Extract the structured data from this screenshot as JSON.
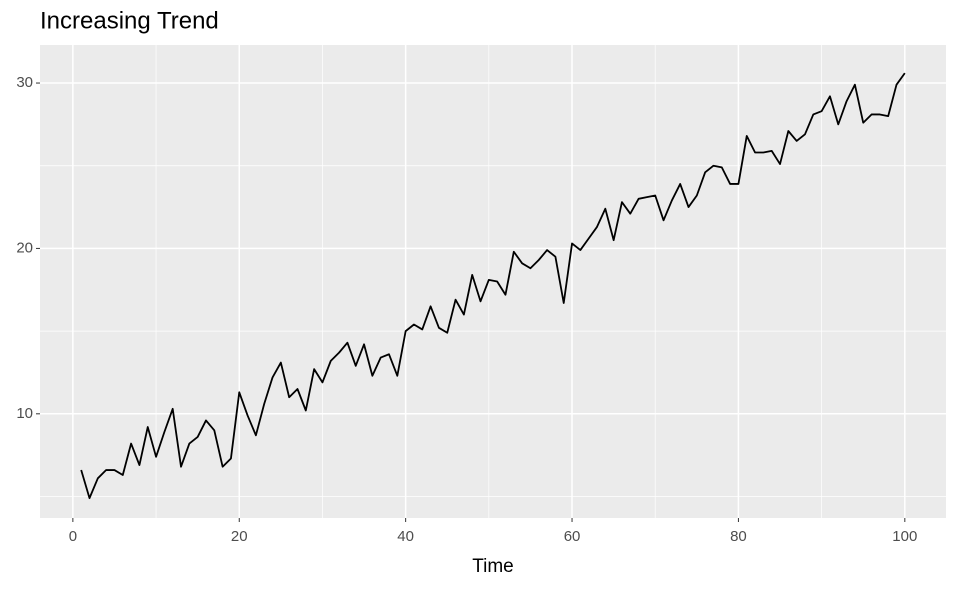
{
  "chart_data": {
    "type": "line",
    "title": "Increasing Trend",
    "xlabel": "Time",
    "x": [
      1,
      2,
      3,
      4,
      5,
      6,
      7,
      8,
      9,
      10,
      11,
      12,
      13,
      14,
      15,
      16,
      17,
      18,
      19,
      20,
      21,
      22,
      23,
      24,
      25,
      26,
      27,
      28,
      29,
      30,
      31,
      32,
      33,
      34,
      35,
      36,
      37,
      38,
      39,
      40,
      41,
      42,
      43,
      44,
      45,
      46,
      47,
      48,
      49,
      50,
      51,
      52,
      53,
      54,
      55,
      56,
      57,
      58,
      59,
      60,
      61,
      62,
      63,
      64,
      65,
      66,
      67,
      68,
      69,
      70,
      71,
      72,
      73,
      74,
      75,
      76,
      77,
      78,
      79,
      80,
      81,
      82,
      83,
      84,
      85,
      86,
      87,
      88,
      89,
      90,
      91,
      92,
      93,
      94,
      95,
      96,
      97,
      98,
      99,
      100
    ],
    "values": [
      6.6,
      4.9,
      6.1,
      6.6,
      6.6,
      6.3,
      8.2,
      6.9,
      9.2,
      7.4,
      8.9,
      10.3,
      6.8,
      8.2,
      8.6,
      9.6,
      9.0,
      6.8,
      7.3,
      11.3,
      9.9,
      8.7,
      10.6,
      12.2,
      13.1,
      11.0,
      11.5,
      10.2,
      12.7,
      11.9,
      13.2,
      13.7,
      14.3,
      12.9,
      14.2,
      12.3,
      13.4,
      13.6,
      12.3,
      15.0,
      15.4,
      15.1,
      16.5,
      15.2,
      14.9,
      16.9,
      16.0,
      18.4,
      16.8,
      18.1,
      18.0,
      17.2,
      19.8,
      19.1,
      18.8,
      19.3,
      19.9,
      19.5,
      16.7,
      20.3,
      19.9,
      20.6,
      21.3,
      22.4,
      20.5,
      22.8,
      22.1,
      23.0,
      23.1,
      23.2,
      21.7,
      22.9,
      23.9,
      22.5,
      23.2,
      24.6,
      25.0,
      24.9,
      23.9,
      23.9,
      26.8,
      25.8,
      25.8,
      25.9,
      25.1,
      27.1,
      26.5,
      26.9,
      28.1,
      28.3,
      29.2,
      27.5,
      28.9,
      29.9,
      27.6,
      28.1,
      28.1,
      28.0,
      29.9,
      30.6
    ],
    "color": "#000000",
    "xlim": [
      -3.95,
      104.95
    ],
    "xticks": [
      0,
      20,
      40,
      60,
      80,
      100
    ],
    "minor_xticks": [
      10,
      30,
      50,
      70,
      90
    ],
    "ylim": [
      3.7,
      32.3
    ],
    "yticks": [
      10,
      20,
      30
    ],
    "minor_yticks": [
      5,
      15,
      25
    ],
    "grid": true
  }
}
